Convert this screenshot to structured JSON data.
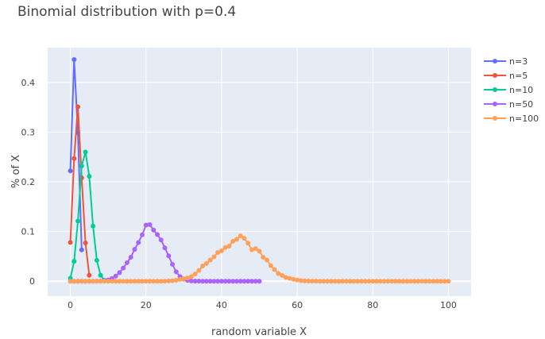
{
  "chart_data": {
    "type": "line",
    "title": "Binomial distribution with p=0.4",
    "xlabel": "random variable X",
    "ylabel": "% of X",
    "xlim": [
      -6,
      106
    ],
    "ylim": [
      -0.03,
      0.47
    ],
    "xticks": [
      0,
      20,
      40,
      60,
      80,
      100
    ],
    "yticks": [
      0,
      0.1,
      0.2,
      0.3,
      0.4
    ],
    "ytick_labels": [
      "0",
      "0.1",
      "0.2",
      "0.3",
      "0.4"
    ],
    "grid": true,
    "legend_position": "top-right",
    "series": [
      {
        "name": "n=3",
        "color": "#636efa",
        "x": [
          0,
          1,
          2,
          3
        ],
        "y": [
          0.222,
          0.446,
          0.299,
          0.063
        ]
      },
      {
        "name": "n=5",
        "color": "#ef553b",
        "x": [
          0,
          1,
          2,
          3,
          4,
          5
        ],
        "y": [
          0.078,
          0.247,
          0.351,
          0.208,
          0.077,
          0.012
        ]
      },
      {
        "name": "n=10",
        "color": "#00cc96",
        "x": [
          0,
          1,
          2,
          3,
          4,
          5,
          6,
          7,
          8,
          9,
          10
        ],
        "y": [
          0.006,
          0.04,
          0.121,
          0.232,
          0.26,
          0.211,
          0.111,
          0.042,
          0.012,
          0.002,
          0.0001
        ]
      },
      {
        "name": "n=50",
        "color": "#ab63fa",
        "x": [
          0,
          1,
          2,
          3,
          4,
          5,
          6,
          7,
          8,
          9,
          10,
          11,
          12,
          13,
          14,
          15,
          16,
          17,
          18,
          19,
          20,
          21,
          22,
          23,
          24,
          25,
          26,
          27,
          28,
          29,
          30,
          31,
          32,
          33,
          34,
          35,
          36,
          37,
          38,
          39,
          40,
          41,
          42,
          43,
          44,
          45,
          46,
          47,
          48,
          49,
          50
        ],
        "y": [
          0,
          0,
          0,
          0,
          0,
          0,
          0,
          0.0001,
          0.0004,
          0.0011,
          0.0026,
          0.0054,
          0.0103,
          0.0174,
          0.0266,
          0.0373,
          0.0482,
          0.0641,
          0.0778,
          0.0933,
          0.113,
          0.114,
          0.103,
          0.094,
          0.083,
          0.067,
          0.051,
          0.034,
          0.019,
          0.0094,
          0.0042,
          0.0017,
          0.0006,
          0.0002,
          0.0001,
          0,
          0,
          0,
          0,
          0,
          0,
          0,
          0,
          0,
          0,
          0,
          0,
          0,
          0,
          0,
          0
        ]
      },
      {
        "name": "n=100",
        "color": "#ffa15a",
        "x": [
          0,
          1,
          2,
          3,
          4,
          5,
          6,
          7,
          8,
          9,
          10,
          11,
          12,
          13,
          14,
          15,
          16,
          17,
          18,
          19,
          20,
          21,
          22,
          23,
          24,
          25,
          26,
          27,
          28,
          29,
          30,
          31,
          32,
          33,
          34,
          35,
          36,
          37,
          38,
          39,
          40,
          41,
          42,
          43,
          44,
          45,
          46,
          47,
          48,
          49,
          50,
          51,
          52,
          53,
          54,
          55,
          56,
          57,
          58,
          59,
          60,
          61,
          62,
          63,
          64,
          65,
          66,
          67,
          68,
          69,
          70,
          71,
          72,
          73,
          74,
          75,
          76,
          77,
          78,
          79,
          80,
          81,
          82,
          83,
          84,
          85,
          86,
          87,
          88,
          89,
          90,
          91,
          92,
          93,
          94,
          95,
          96,
          97,
          98,
          99,
          100
        ],
        "y": [
          0,
          0,
          0,
          0,
          0,
          0,
          0,
          0,
          0,
          0,
          0,
          0,
          0,
          0,
          0,
          0,
          0,
          0,
          0,
          0,
          0,
          0,
          0,
          0,
          0,
          0.0002,
          0.0005,
          0.001,
          0.0019,
          0.0035,
          0.0052,
          0.0068,
          0.0094,
          0.0145,
          0.0217,
          0.0307,
          0.0356,
          0.0426,
          0.049,
          0.0578,
          0.0613,
          0.0679,
          0.0706,
          0.0805,
          0.0843,
          0.0913,
          0.0864,
          0.0765,
          0.0633,
          0.0656,
          0.0605,
          0.0481,
          0.0426,
          0.0314,
          0.0235,
          0.0157,
          0.0117,
          0.0077,
          0.0058,
          0.004,
          0.0024,
          0.0012,
          0.0006,
          0.0003,
          0.0002,
          0.0001,
          0,
          0,
          0,
          0,
          0,
          0,
          0,
          0,
          0,
          0,
          0,
          0,
          0,
          0,
          0,
          0,
          0,
          0,
          0,
          0,
          0,
          0,
          0,
          0,
          0,
          0,
          0,
          0,
          0,
          0,
          0,
          0,
          0,
          0,
          0
        ]
      }
    ]
  }
}
